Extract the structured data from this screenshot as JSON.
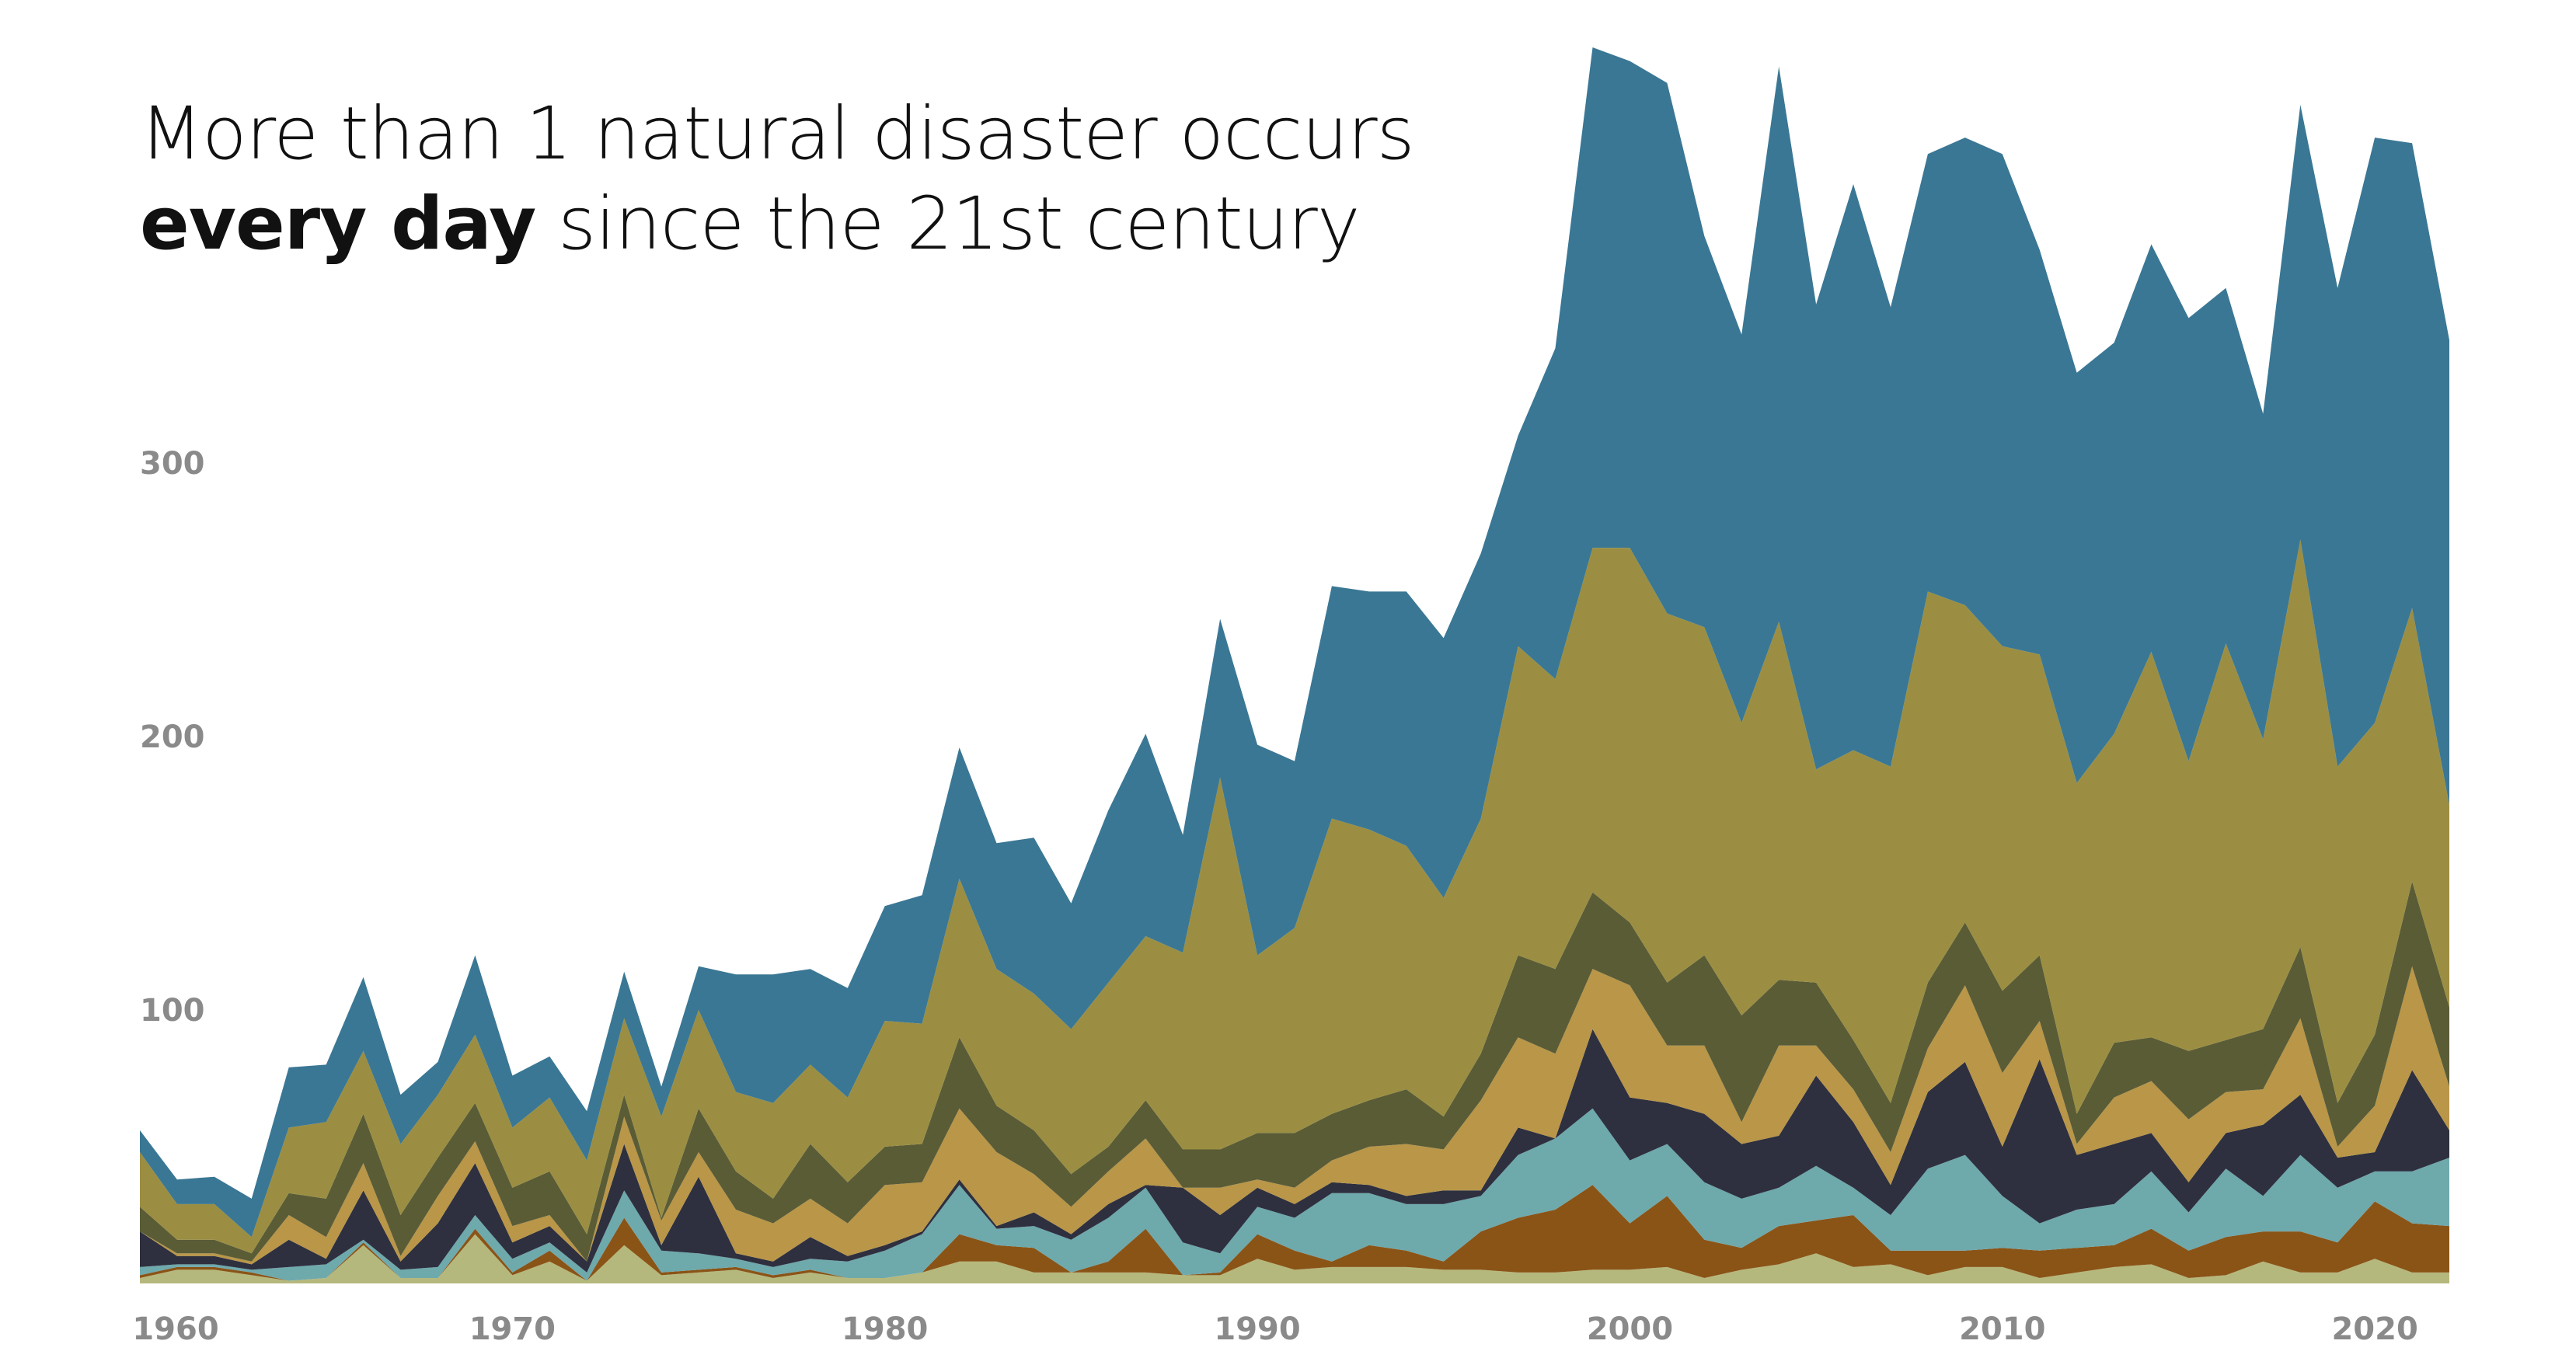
{
  "title": {
    "line1": "More than 1 natural disaster occurs",
    "line2_bold": "every day",
    "line2_rest": " since the 21st century"
  },
  "chart_data": {
    "type": "area",
    "stacked": true,
    "title": "More than 1 natural disaster occurs every day since the 21st century",
    "xlabel": "",
    "ylabel": "",
    "xlim": [
      1960,
      2022
    ],
    "ylim": [
      0,
      460
    ],
    "x_ticks": [
      "1960",
      "1970",
      "1980",
      "1990",
      "2000",
      "2010",
      "2020"
    ],
    "y_ticks": [
      "100",
      "200",
      "300"
    ],
    "grid": false,
    "legend": "none",
    "x": [
      1960,
      1961,
      1962,
      1963,
      1964,
      1965,
      1966,
      1967,
      1968,
      1969,
      1970,
      1971,
      1972,
      1973,
      1974,
      1975,
      1976,
      1977,
      1978,
      1979,
      1980,
      1981,
      1982,
      1983,
      1984,
      1985,
      1986,
      1987,
      1988,
      1989,
      1990,
      1991,
      1992,
      1993,
      1994,
      1995,
      1996,
      1997,
      1998,
      1999,
      2000,
      2001,
      2002,
      2003,
      2004,
      2005,
      2006,
      2007,
      2008,
      2009,
      2010,
      2011,
      2012,
      2013,
      2014,
      2015,
      2016,
      2017,
      2018,
      2019,
      2020,
      2021,
      2022
    ],
    "series": [
      {
        "color": "#b5b87c",
        "values": [
          2,
          5,
          5,
          3,
          1,
          2,
          14,
          2,
          2,
          18,
          3,
          8,
          1,
          14,
          3,
          4,
          5,
          2,
          4,
          2,
          2,
          4,
          8,
          8,
          4,
          4,
          4,
          4,
          3,
          3,
          9,
          5,
          6,
          6,
          6,
          5,
          5,
          4,
          4,
          5,
          5,
          6,
          2,
          5,
          7,
          11,
          6,
          7,
          3,
          6,
          6,
          2,
          4,
          6,
          7,
          2,
          3,
          8,
          4,
          4,
          9,
          4,
          4
        ]
      },
      {
        "color": "#8a5417",
        "values": [
          1,
          1,
          1,
          1,
          0,
          0,
          1,
          0,
          0,
          2,
          1,
          4,
          0,
          10,
          1,
          1,
          1,
          1,
          1,
          0,
          0,
          0,
          10,
          6,
          9,
          0,
          4,
          16,
          0,
          1,
          9,
          7,
          2,
          8,
          6,
          3,
          14,
          20,
          23,
          31,
          17,
          26,
          14,
          8,
          14,
          12,
          19,
          5,
          9,
          6,
          7,
          10,
          9,
          8,
          13,
          10,
          14,
          11,
          15,
          11,
          21,
          18,
          17
        ]
      },
      {
        "color": "#6ea9ac",
        "values": [
          3,
          1,
          1,
          1,
          5,
          5,
          1,
          3,
          4,
          5,
          5,
          3,
          3,
          10,
          8,
          6,
          3,
          3,
          4,
          6,
          10,
          14,
          18,
          6,
          8,
          12,
          16,
          15,
          12,
          7,
          10,
          12,
          25,
          19,
          17,
          21,
          13,
          23,
          26,
          28,
          23,
          19,
          21,
          18,
          14,
          20,
          10,
          13,
          30,
          35,
          19,
          10,
          14,
          15,
          21,
          14,
          25,
          13,
          28,
          20,
          11,
          19,
          25
        ]
      },
      {
        "color": "#2e303f",
        "values": [
          13,
          3,
          3,
          2,
          10,
          2,
          18,
          3,
          16,
          19,
          6,
          6,
          4,
          17,
          2,
          28,
          2,
          2,
          8,
          2,
          2,
          1,
          2,
          1,
          5,
          2,
          5,
          1,
          20,
          14,
          7,
          5,
          4,
          3,
          3,
          5,
          2,
          10,
          0,
          29,
          23,
          15,
          25,
          20,
          19,
          33,
          24,
          11,
          28,
          34,
          18,
          60,
          20,
          22,
          14,
          11,
          13,
          26,
          22,
          11,
          7,
          37,
          10
        ]
      },
      {
        "color": "#b99648",
        "values": [
          0,
          1,
          1,
          1,
          9,
          8,
          10,
          2,
          10,
          8,
          6,
          4,
          0,
          10,
          9,
          9,
          16,
          14,
          14,
          12,
          22,
          18,
          26,
          27,
          14,
          10,
          12,
          17,
          0,
          10,
          3,
          6,
          8,
          14,
          19,
          15,
          33,
          33,
          31,
          22,
          41,
          21,
          25,
          8,
          33,
          11,
          12,
          12,
          16,
          28,
          27,
          14,
          4,
          17,
          19,
          23,
          15,
          13,
          28,
          4,
          17,
          38,
          16
        ]
      },
      {
        "color": "#5a5c36",
        "values": [
          9,
          5,
          5,
          3,
          8,
          14,
          18,
          15,
          14,
          14,
          14,
          16,
          10,
          8,
          1,
          16,
          14,
          9,
          20,
          15,
          14,
          14,
          26,
          17,
          16,
          12,
          9,
          14,
          14,
          14,
          17,
          20,
          17,
          17,
          20,
          12,
          17,
          30,
          31,
          28,
          23,
          23,
          33,
          39,
          24,
          23,
          18,
          18,
          24,
          23,
          30,
          24,
          11,
          20,
          16,
          25,
          19,
          22,
          26,
          16,
          26,
          31,
          29
        ]
      },
      {
        "color": "#9b8e42",
        "values": [
          20,
          13,
          13,
          6,
          24,
          28,
          23,
          26,
          23,
          25,
          22,
          27,
          27,
          28,
          37,
          36,
          29,
          35,
          29,
          31,
          46,
          44,
          58,
          50,
          50,
          53,
          60,
          60,
          72,
          136,
          65,
          75,
          108,
          99,
          89,
          80,
          86,
          113,
          106,
          126,
          137,
          135,
          120,
          107,
          131,
          78,
          106,
          123,
          143,
          116,
          126,
          110,
          121,
          113,
          141,
          106,
          145,
          106,
          149,
          123,
          114,
          100,
          74
        ]
      },
      {
        "color": "#3a7794",
        "values": [
          8,
          9,
          10,
          14,
          22,
          21,
          27,
          18,
          12,
          29,
          19,
          15,
          18,
          17,
          11,
          16,
          43,
          47,
          35,
          40,
          42,
          47,
          48,
          46,
          57,
          46,
          63,
          74,
          43,
          58,
          77,
          61,
          85,
          87,
          93,
          95,
          97,
          77,
          121,
          183,
          178,
          194,
          143,
          142,
          203,
          170,
          207,
          168,
          160,
          171,
          180,
          148,
          150,
          143,
          149,
          162,
          130,
          119,
          159,
          175,
          214,
          170,
          170
        ]
      }
    ]
  }
}
